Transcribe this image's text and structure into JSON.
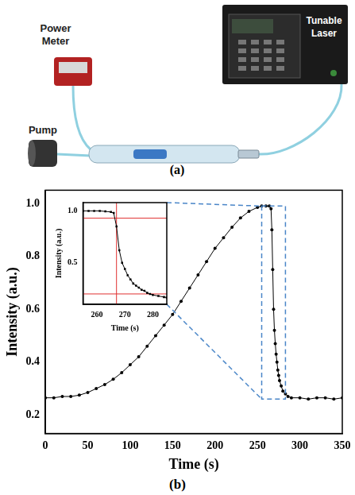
{
  "diagram": {
    "labels": {
      "laser": "Tunable Laser",
      "meter": "Power Meter",
      "pump": "Pump"
    },
    "caption": "(a)"
  },
  "chart_data": [
    {
      "type": "line",
      "caption": "(b)",
      "x_label": "Time (s)",
      "y_label": "Intensity (a.u.)",
      "x": [
        0,
        10,
        20,
        30,
        40,
        50,
        60,
        70,
        80,
        90,
        100,
        110,
        120,
        130,
        140,
        150,
        160,
        170,
        180,
        190,
        200,
        210,
        220,
        230,
        240,
        250,
        255,
        260,
        264,
        266,
        267,
        268,
        269,
        270,
        271,
        272,
        273,
        274,
        275,
        276,
        278,
        280,
        283,
        286,
        290,
        300,
        310,
        320,
        330,
        340,
        350
      ],
      "values": [
        0.265,
        0.265,
        0.27,
        0.27,
        0.275,
        0.285,
        0.3,
        0.315,
        0.335,
        0.36,
        0.39,
        0.42,
        0.46,
        0.5,
        0.54,
        0.58,
        0.63,
        0.68,
        0.73,
        0.78,
        0.83,
        0.87,
        0.91,
        0.945,
        0.97,
        0.985,
        0.99,
        0.99,
        0.99,
        0.98,
        0.9,
        0.75,
        0.6,
        0.52,
        0.47,
        0.43,
        0.4,
        0.37,
        0.35,
        0.33,
        0.31,
        0.29,
        0.28,
        0.27,
        0.265,
        0.265,
        0.26,
        0.265,
        0.265,
        0.26,
        0.265
      ],
      "color": "#000000",
      "marker": "circle",
      "line_style": "solid",
      "xlim": [
        0,
        350
      ],
      "xticks": [
        0,
        50,
        100,
        150,
        200,
        250,
        300,
        350
      ],
      "ylim": [
        0.13,
        1.05
      ],
      "yticks": [
        0.2,
        0.4,
        0.6,
        0.8,
        {
          "value": 1,
          "label": "1.0"
        }
      ],
      "grid": false,
      "zoom_box": {
        "x": [
          255,
          283
        ],
        "y": [
          0.26,
          0.99
        ],
        "color": "#4a86c8"
      }
    },
    {
      "type": "line",
      "x_label": "Time (s)",
      "y_label": "Intensity (a.u.)",
      "x": [
        255,
        257,
        259,
        261,
        263,
        265,
        266,
        267,
        268,
        269,
        270,
        271,
        272,
        273,
        274,
        275,
        276,
        277,
        278,
        279,
        280,
        282,
        284,
        285
      ],
      "values": [
        1.0,
        1.0,
        1.0,
        1.0,
        0.995,
        0.99,
        0.98,
        0.85,
        0.62,
        0.5,
        0.44,
        0.38,
        0.34,
        0.3,
        0.28,
        0.26,
        0.24,
        0.23,
        0.21,
        0.2,
        0.19,
        0.18,
        0.17,
        0.165
      ],
      "color": "#000000",
      "marker": "square",
      "line_style": "solid",
      "xlim": [
        255,
        285
      ],
      "xticks": [
        260,
        270,
        280
      ],
      "ylim": [
        0.1,
        1.08
      ],
      "yticks": [
        0.5,
        {
          "value": 1,
          "label": "1.0"
        }
      ],
      "grid": false,
      "ref_lines": {
        "x": [
          267
        ],
        "y": [
          0.93,
          0.2
        ],
        "color": "#e03030"
      }
    }
  ]
}
